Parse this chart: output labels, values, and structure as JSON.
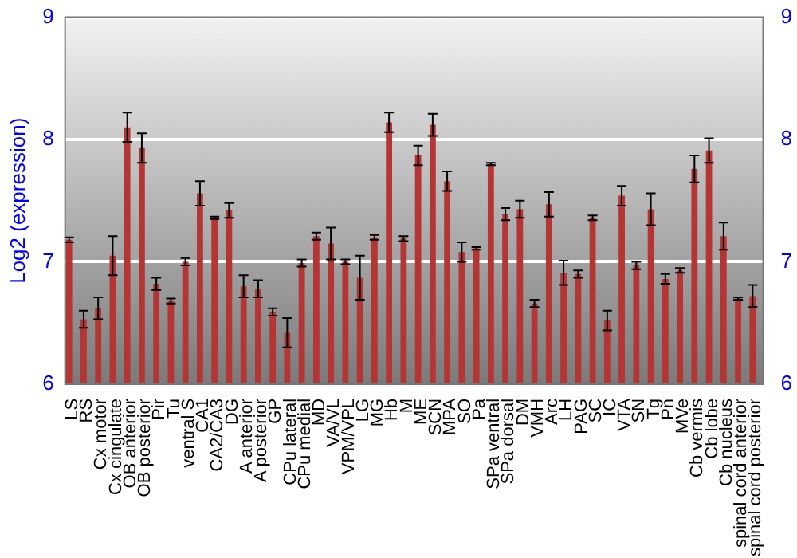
{
  "chart_data": {
    "type": "bar",
    "ylabel": "Log2 (expression)",
    "categories": [
      "LS",
      "RS",
      "Cx motor",
      "Cx cingulate",
      "OB anterior",
      "OB posterior",
      "Pir",
      "Tu",
      "ventral S",
      "CA1",
      "CA2/CA3",
      "DG",
      "A anterior",
      "A posterior",
      "GP",
      "CPu lateral",
      "CPu medial",
      "MD",
      "VA/VL",
      "VPM/VPL",
      "LG",
      "MG",
      "Hb",
      "M",
      "ME",
      "SCN",
      "MPA",
      "SO",
      "Pa",
      "SPa ventral",
      "SPa dorsal",
      "DM",
      "VMH",
      "Arc",
      "LH",
      "PAG",
      "SC",
      "IC",
      "VTA",
      "SN",
      "Tg",
      "Pn",
      "MVe",
      "Cb vermis",
      "Cb lobe",
      "Cb nucleus",
      "spinal cord anterior",
      "spinal cord posterior"
    ],
    "values": [
      7.18,
      6.53,
      6.62,
      7.05,
      8.1,
      7.93,
      6.82,
      6.68,
      7.0,
      7.56,
      7.36,
      7.42,
      6.8,
      6.78,
      6.59,
      6.42,
      6.99,
      7.21,
      7.15,
      7.0,
      6.87,
      7.2,
      8.14,
      7.19,
      7.87,
      8.12,
      7.66,
      7.08,
      7.11,
      7.8,
      7.39,
      7.43,
      6.66,
      7.47,
      6.91,
      6.9,
      7.36,
      6.52,
      7.54,
      6.97,
      7.43,
      6.86,
      6.93,
      7.76,
      7.91,
      7.21,
      6.7,
      6.72
    ],
    "errors": [
      0.02,
      0.07,
      0.09,
      0.16,
      0.12,
      0.12,
      0.05,
      0.02,
      0.03,
      0.1,
      0.01,
      0.06,
      0.09,
      0.07,
      0.03,
      0.12,
      0.03,
      0.03,
      0.13,
      0.02,
      0.18,
      0.02,
      0.08,
      0.02,
      0.08,
      0.09,
      0.08,
      0.08,
      0.01,
      0.01,
      0.05,
      0.07,
      0.03,
      0.1,
      0.1,
      0.03,
      0.02,
      0.08,
      0.08,
      0.03,
      0.13,
      0.04,
      0.02,
      0.11,
      0.1,
      0.11,
      0.01,
      0.09
    ],
    "color": "#b53535",
    "ylim": [
      6,
      9
    ],
    "yticks": [
      6,
      7,
      8,
      9
    ],
    "y2lim": [
      6,
      9
    ],
    "y2ticks": [
      6,
      7,
      8,
      9
    ],
    "grid": "y",
    "legend": false
  }
}
